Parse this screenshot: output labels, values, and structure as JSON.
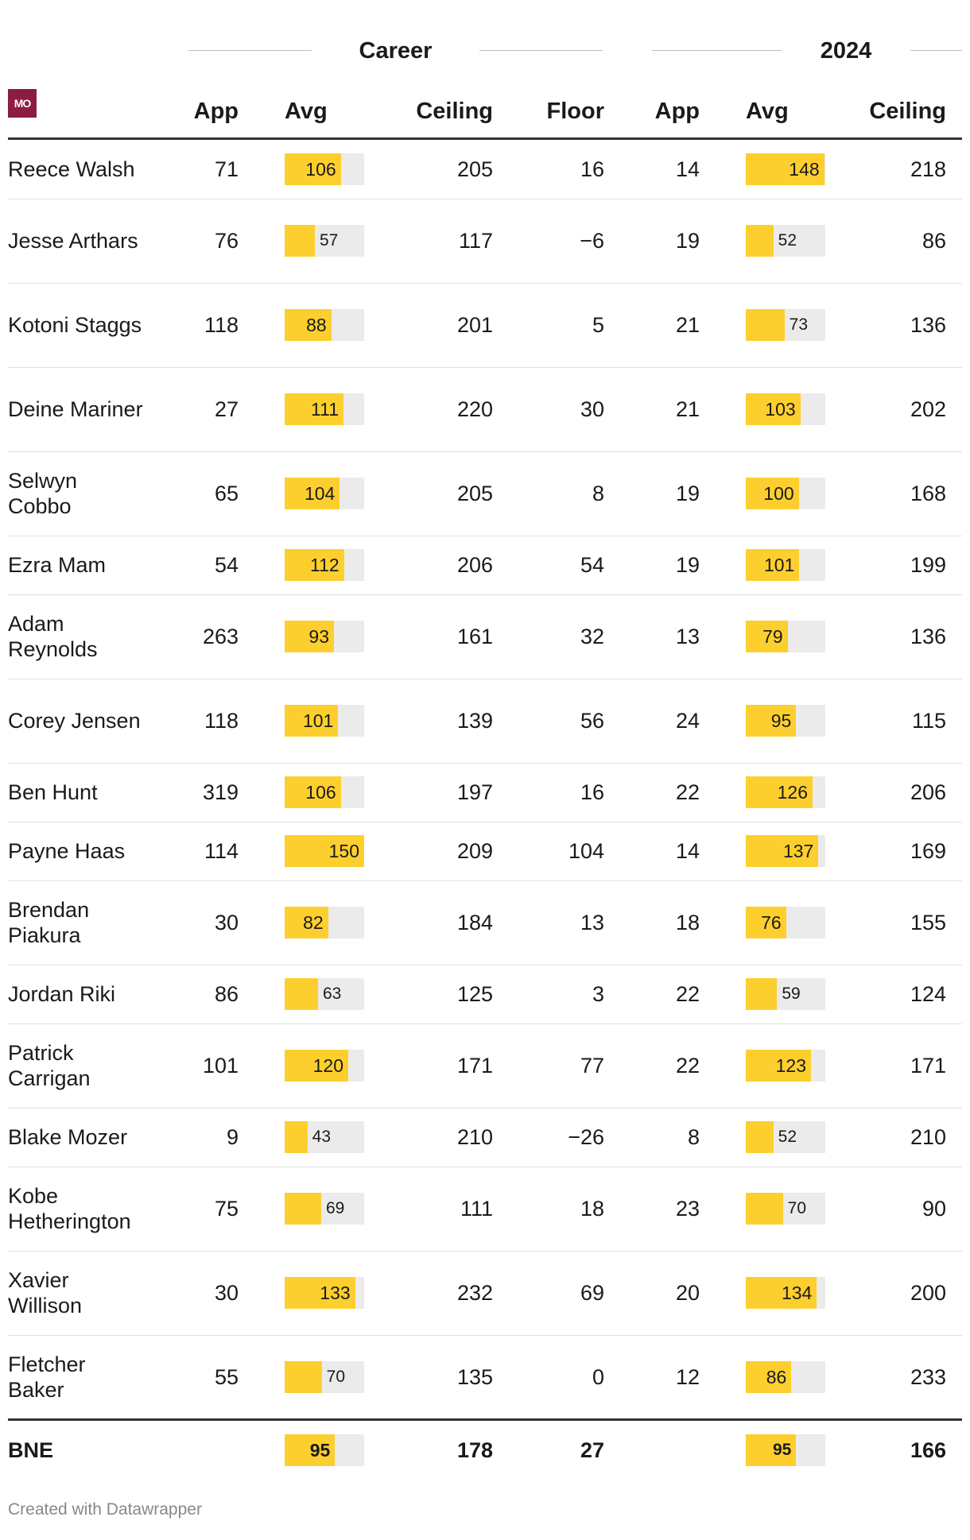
{
  "chart_data": {
    "type": "table",
    "column_groups": [
      "Career",
      "2024"
    ],
    "columns": [
      "App",
      "Avg",
      "Ceiling",
      "Floor",
      "App",
      "Avg",
      "Ceiling"
    ],
    "logo_text": "MO",
    "bar_max": 150,
    "rows": [
      {
        "name": "Reece Walsh",
        "career_app": "71",
        "career_avg": 106,
        "career_ceiling": "205",
        "career_floor": "16",
        "y2024_app": "14",
        "y2024_avg": 148,
        "y2024_ceiling": "218"
      },
      {
        "name": "Jesse Arthars",
        "career_app": "76",
        "career_avg": 57,
        "career_ceiling": "117",
        "career_floor": "−6",
        "y2024_app": "19",
        "y2024_avg": 52,
        "y2024_ceiling": "86"
      },
      {
        "name": "Kotoni Staggs",
        "career_app": "118",
        "career_avg": 88,
        "career_ceiling": "201",
        "career_floor": "5",
        "y2024_app": "21",
        "y2024_avg": 73,
        "y2024_ceiling": "136"
      },
      {
        "name": "Deine Mariner",
        "career_app": "27",
        "career_avg": 111,
        "career_ceiling": "220",
        "career_floor": "30",
        "y2024_app": "21",
        "y2024_avg": 103,
        "y2024_ceiling": "202"
      },
      {
        "name": "Selwyn Cobbo",
        "career_app": "65",
        "career_avg": 104,
        "career_ceiling": "205",
        "career_floor": "8",
        "y2024_app": "19",
        "y2024_avg": 100,
        "y2024_ceiling": "168"
      },
      {
        "name": "Ezra Mam",
        "career_app": "54",
        "career_avg": 112,
        "career_ceiling": "206",
        "career_floor": "54",
        "y2024_app": "19",
        "y2024_avg": 101,
        "y2024_ceiling": "199"
      },
      {
        "name": "Adam Reynolds",
        "career_app": "263",
        "career_avg": 93,
        "career_ceiling": "161",
        "career_floor": "32",
        "y2024_app": "13",
        "y2024_avg": 79,
        "y2024_ceiling": "136"
      },
      {
        "name": "Corey Jensen",
        "career_app": "118",
        "career_avg": 101,
        "career_ceiling": "139",
        "career_floor": "56",
        "y2024_app": "24",
        "y2024_avg": 95,
        "y2024_ceiling": "115"
      },
      {
        "name": "Ben Hunt",
        "career_app": "319",
        "career_avg": 106,
        "career_ceiling": "197",
        "career_floor": "16",
        "y2024_app": "22",
        "y2024_avg": 126,
        "y2024_ceiling": "206"
      },
      {
        "name": "Payne Haas",
        "career_app": "114",
        "career_avg": 150,
        "career_ceiling": "209",
        "career_floor": "104",
        "y2024_app": "14",
        "y2024_avg": 137,
        "y2024_ceiling": "169"
      },
      {
        "name": "Brendan Piakura",
        "career_app": "30",
        "career_avg": 82,
        "career_ceiling": "184",
        "career_floor": "13",
        "y2024_app": "18",
        "y2024_avg": 76,
        "y2024_ceiling": "155"
      },
      {
        "name": "Jordan Riki",
        "career_app": "86",
        "career_avg": 63,
        "career_ceiling": "125",
        "career_floor": "3",
        "y2024_app": "22",
        "y2024_avg": 59,
        "y2024_ceiling": "124"
      },
      {
        "name": "Patrick Carrigan",
        "career_app": "101",
        "career_avg": 120,
        "career_ceiling": "171",
        "career_floor": "77",
        "y2024_app": "22",
        "y2024_avg": 123,
        "y2024_ceiling": "171"
      },
      {
        "name": "Blake Mozer",
        "career_app": "9",
        "career_avg": 43,
        "career_ceiling": "210",
        "career_floor": "−26",
        "y2024_app": "8",
        "y2024_avg": 52,
        "y2024_ceiling": "210"
      },
      {
        "name": "Kobe Hetherington",
        "career_app": "75",
        "career_avg": 69,
        "career_ceiling": "111",
        "career_floor": "18",
        "y2024_app": "23",
        "y2024_avg": 70,
        "y2024_ceiling": "90"
      },
      {
        "name": "Xavier Willison",
        "career_app": "30",
        "career_avg": 133,
        "career_ceiling": "232",
        "career_floor": "69",
        "y2024_app": "20",
        "y2024_avg": 134,
        "y2024_ceiling": "200"
      },
      {
        "name": "Fletcher Baker",
        "career_app": "55",
        "career_avg": 70,
        "career_ceiling": "135",
        "career_floor": "0",
        "y2024_app": "12",
        "y2024_avg": 86,
        "y2024_ceiling": "233"
      }
    ],
    "total": {
      "name": "BNE",
      "career_app": "",
      "career_avg": 95,
      "career_ceiling": "178",
      "career_floor": "27",
      "y2024_app": "",
      "y2024_avg": 95,
      "y2024_ceiling": "166"
    }
  },
  "colors": {
    "bar": "#fdcf2e",
    "track": "#ebebeb",
    "logo": "#8c1d40"
  },
  "footer": "Created with Datawrapper"
}
